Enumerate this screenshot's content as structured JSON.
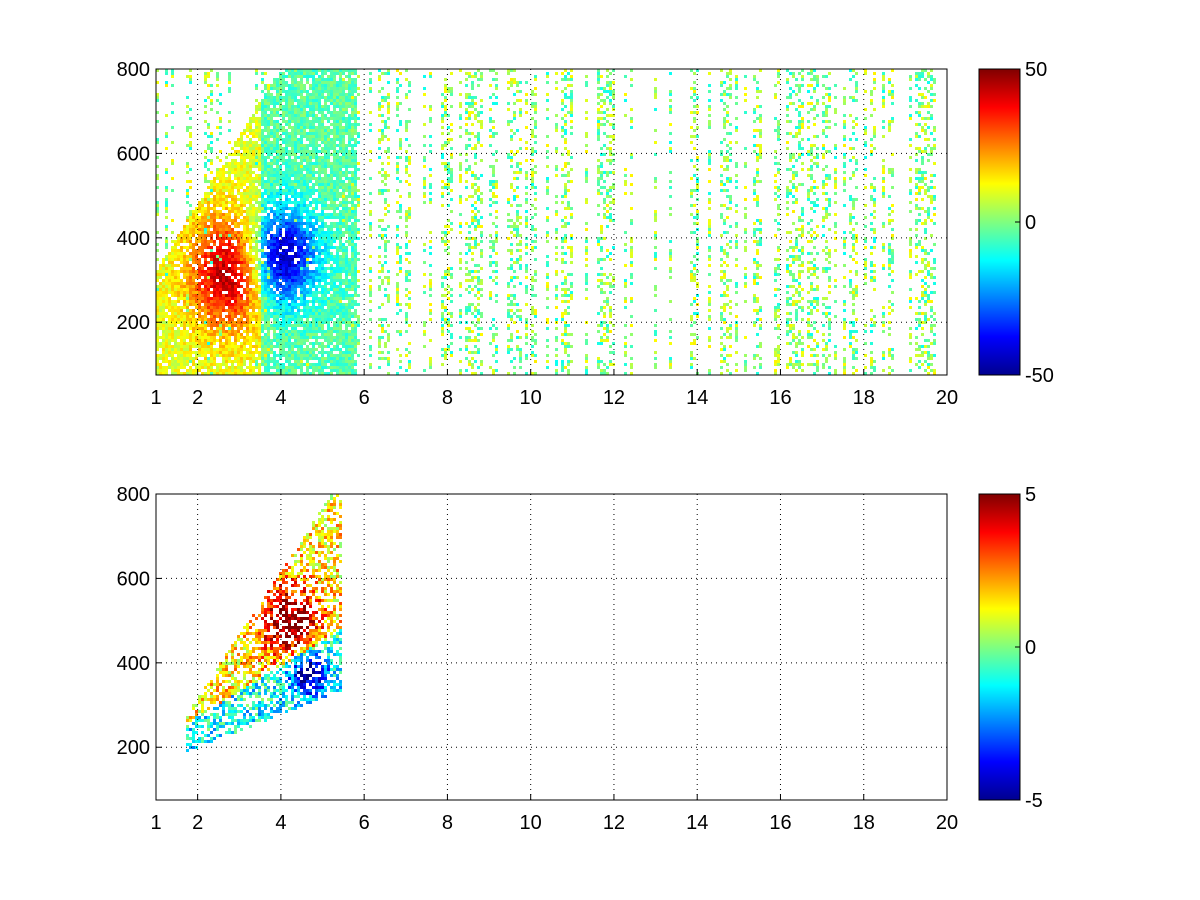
{
  "chart_data": [
    {
      "type": "heatmap",
      "title": "",
      "xlabel": "",
      "ylabel": "",
      "xlim": [
        1,
        20
      ],
      "ylim": [
        75,
        800
      ],
      "xticks": [
        1,
        2,
        4,
        6,
        8,
        10,
        12,
        14,
        16,
        18,
        20
      ],
      "yticks": [
        200,
        400,
        600,
        800
      ],
      "grid": true,
      "colormap": "jet",
      "colorbar": {
        "range": [
          -50,
          50
        ],
        "ticks": [
          -50,
          0,
          50
        ]
      },
      "features": [
        {
          "desc": "positive maximum",
          "x": 2.7,
          "y": 320,
          "value": 35
        },
        {
          "desc": "negative minimum",
          "x": 4.0,
          "y": 360,
          "value": -42
        },
        {
          "desc": "background scatter",
          "x_range": [
            1,
            20
          ],
          "y_range": [
            75,
            800
          ],
          "value_range": [
            -15,
            12
          ]
        }
      ]
    },
    {
      "type": "heatmap",
      "title": "",
      "xlabel": "",
      "ylabel": "",
      "xlim": [
        1,
        20
      ],
      "ylim": [
        75,
        800
      ],
      "xticks": [
        1,
        2,
        4,
        6,
        8,
        10,
        12,
        14,
        16,
        18,
        20
      ],
      "yticks": [
        200,
        400,
        600,
        800
      ],
      "grid": true,
      "colormap": "jet",
      "colorbar": {
        "range": [
          -5,
          5
        ],
        "ticks": [
          -5,
          0,
          5
        ]
      },
      "features": [
        {
          "desc": "positive ridge",
          "x": 4.2,
          "y": 500,
          "value": 4
        },
        {
          "desc": "negative region",
          "x": 4.6,
          "y": 380,
          "value": -4.5
        },
        {
          "desc": "cluster extent",
          "x_range": [
            1.7,
            5.4
          ],
          "y_range": [
            190,
            800
          ]
        }
      ]
    }
  ]
}
